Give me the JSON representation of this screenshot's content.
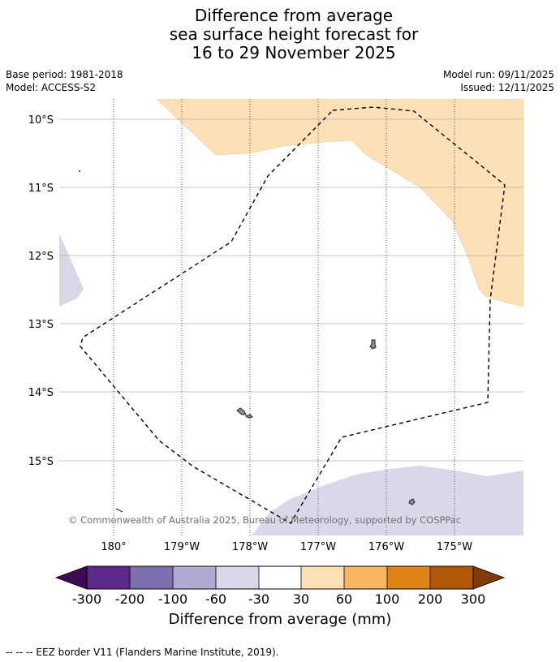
{
  "title": {
    "line1": "Difference from average",
    "line2": "sea surface height forecast for",
    "line3": "16 to 29 November 2025"
  },
  "meta": {
    "base_period": "Base period: 1981-2018",
    "model": "Model: ACCESS-S2",
    "model_run": "Model run: 09/11/2025",
    "issued": "Issued: 12/11/2025"
  },
  "map": {
    "lat_labels": [
      "10°S",
      "11°S",
      "12°S",
      "13°S",
      "14°S",
      "15°S"
    ],
    "lon_labels": [
      "180°",
      "179°W",
      "178°W",
      "177°W",
      "176°W",
      "175°W"
    ],
    "copyright": "© Commonwealth of Australia 2025, Bureau of Meteorology, supported by COSPPac",
    "colors": {
      "anomaly_positive": "#fde0b5",
      "anomaly_negative": "#d8d8e9",
      "land": "#8c8c8c",
      "gridline": "#b0b0b0"
    }
  },
  "colorbar": {
    "ticks": [
      "-300",
      "-200",
      "-100",
      "-60",
      "-30",
      "30",
      "60",
      "100",
      "200",
      "300"
    ],
    "colors": [
      "#3f0a55",
      "#5b2a8c",
      "#7f6ead",
      "#b1a9d2",
      "#d8d8e9",
      "#ffffff",
      "#fde0b5",
      "#f9b55f",
      "#e08214",
      "#b35806",
      "#7f3b08"
    ],
    "label": "Difference from average (mm)"
  },
  "footnote": "--  --  -- EEZ border V11 (Flanders Marine Institute, 2019)."
}
